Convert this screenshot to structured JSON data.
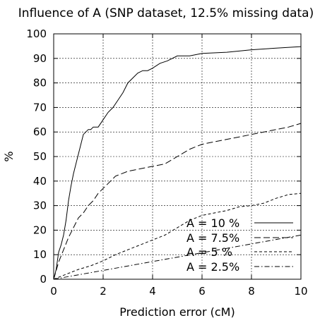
{
  "chart_data": {
    "type": "line",
    "title": "Influence of A (SNP dataset, 12.5% missing data)",
    "xlabel": "Prediction error (cM)",
    "ylabel": "%",
    "xlim": [
      0,
      10
    ],
    "ylim": [
      0,
      100
    ],
    "xticks": [
      "0",
      "2",
      "4",
      "6",
      "8",
      "10"
    ],
    "yticks": [
      "0",
      "10",
      "20",
      "30",
      "40",
      "50",
      "60",
      "70",
      "80",
      "90",
      "100"
    ],
    "grid": true,
    "legend_position": "bottom-right",
    "series": [
      {
        "name": "A =  10  %",
        "dash": "solid",
        "x": [
          0,
          0.1,
          0.2,
          0.3,
          0.4,
          0.5,
          0.6,
          0.7,
          0.8,
          0.9,
          1.0,
          1.1,
          1.2,
          1.3,
          1.4,
          1.5,
          1.6,
          1.8,
          2.0,
          2.2,
          2.4,
          2.6,
          2.8,
          3.0,
          3.2,
          3.4,
          3.6,
          3.8,
          4.0,
          4.3,
          4.6,
          5.0,
          5.5,
          6.0,
          7.0,
          8.0,
          9.0,
          10.0
        ],
        "y": [
          0,
          4,
          11,
          14,
          18,
          24,
          32,
          38,
          43,
          47,
          51,
          55,
          59,
          60,
          61,
          61,
          62,
          62,
          65,
          68,
          70,
          73,
          76,
          80,
          82,
          84,
          85,
          85,
          86,
          88,
          89,
          91,
          91,
          92,
          92.5,
          93.5,
          94.2,
          94.8
        ]
      },
      {
        "name": "A =  7.5%",
        "dash": "long-dash",
        "x": [
          0,
          0.2,
          0.4,
          0.6,
          0.8,
          1.0,
          1.2,
          1.4,
          1.6,
          1.8,
          2.0,
          2.2,
          2.5,
          3.0,
          3.5,
          4.0,
          4.5,
          5.0,
          5.5,
          6.0,
          6.5,
          7.0,
          7.5,
          8.0,
          8.5,
          9.0,
          9.5,
          10.0
        ],
        "y": [
          0,
          7,
          12,
          17,
          21,
          25,
          27,
          30,
          32,
          35,
          37,
          39,
          42,
          44,
          45,
          46,
          47,
          50,
          53,
          55,
          56,
          57,
          58,
          59,
          60,
          61,
          62,
          63.5
        ]
      },
      {
        "name": "A =  5   %",
        "dash": "short-dash",
        "x": [
          0,
          0.5,
          1.0,
          1.5,
          2.0,
          2.5,
          3.0,
          3.5,
          4.0,
          4.5,
          5.0,
          5.5,
          6.0,
          6.5,
          7.0,
          7.5,
          8.0,
          8.5,
          9.0,
          9.5,
          10.0
        ],
        "y": [
          0,
          2,
          4,
          5.5,
          7.5,
          10,
          12,
          14,
          16,
          18,
          21,
          24,
          26,
          27,
          28,
          29.5,
          30,
          31,
          33,
          34.5,
          35
        ]
      },
      {
        "name": "A =   2.5%",
        "dash": "dash-dot",
        "x": [
          0,
          1,
          2,
          3,
          4,
          5,
          6,
          7,
          8,
          9,
          10
        ],
        "y": [
          0,
          1.8,
          3.6,
          5.4,
          7.2,
          9,
          10.8,
          12.6,
          14.4,
          16.2,
          18
        ]
      }
    ]
  }
}
